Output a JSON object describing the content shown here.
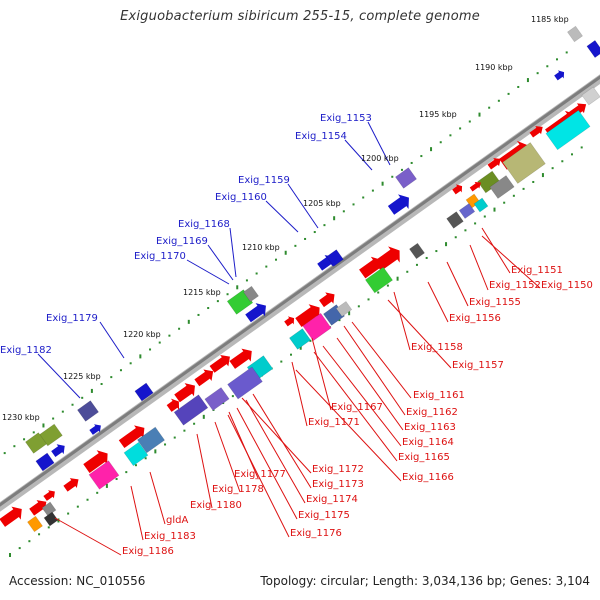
{
  "title": "Exiguobacterium sibiricum 255-15, complete genome",
  "footer": {
    "accession": "Accession: NC_010556",
    "summary": "Topology: circular; Length: 3,034,136 bp; Genes: 3,104"
  },
  "colors": {
    "forward_label": "#1c1cc8",
    "reverse_label": "#dd1111",
    "backbone": "#8a8a8a",
    "tick": "#2e8b2e"
  },
  "scale_labels": [
    "1185 kbp",
    "1190 kbp",
    "1195 kbp",
    "1200 kbp",
    "1205 kbp",
    "1210 kbp",
    "1215 kbp",
    "1220 kbp",
    "1225 kbp",
    "1230 kbp"
  ],
  "forward_gene_labels": [
    "Exig_1153",
    "Exig_1154",
    "Exig_1159",
    "Exig_1160",
    "Exig_1168",
    "Exig_1169",
    "Exig_1170",
    "Exig_1179",
    "Exig_1182"
  ],
  "reverse_gene_labels": [
    "Exig_1151",
    "Exig_1150",
    "Exig_1152",
    "Exig_1155",
    "Exig_1156",
    "Exig_1158",
    "Exig_1157",
    "Exig_1161",
    "Exig_1167",
    "Exig_1162",
    "Exig_1171",
    "Exig_1163",
    "Exig_1164",
    "Exig_1165",
    "Exig_1166",
    "Exig_1172",
    "Exig_1177",
    "Exig_1173",
    "Exig_1178",
    "Exig_1174",
    "Exig_1180",
    "Exig_1175",
    "Exig_1176",
    "gldA",
    "Exig_1183",
    "Exig_1186"
  ]
}
